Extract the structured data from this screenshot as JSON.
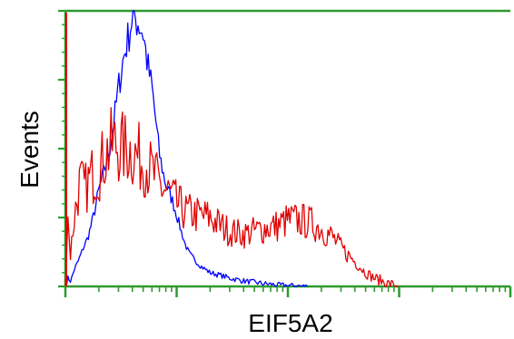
{
  "chart_data": {
    "type": "line",
    "title": "",
    "xlabel": "EIF5A2",
    "ylabel": "Events",
    "xscale": "log",
    "xlim": [
      1,
      10000
    ],
    "ylim": [
      0,
      100
    ],
    "grid": false,
    "legend": "none",
    "axis_color": "#2e9a2e",
    "series": [
      {
        "color": "#0000ff",
        "x": [
          1,
          1.05,
          1.12,
          1.2,
          1.3,
          1.45,
          1.6,
          1.8,
          2.0,
          2.2,
          2.5,
          2.8,
          3.0,
          3.3,
          3.7,
          4.0,
          4.5,
          5.0,
          5.5,
          6.0,
          6.5,
          7.0,
          7.5,
          8.0,
          9.0,
          10,
          11,
          12,
          13,
          15,
          17,
          20,
          25,
          30,
          40,
          50,
          60,
          70,
          80,
          100,
          120,
          150
        ],
        "y": [
          0,
          3,
          2,
          6,
          9,
          14,
          18,
          26,
          35,
          41,
          50,
          63,
          72,
          82,
          91,
          98,
          96,
          92,
          80,
          72,
          60,
          48,
          42,
          37,
          32,
          26,
          20,
          15,
          12,
          9,
          7,
          5,
          4,
          3,
          2,
          1.5,
          1,
          0.8,
          0.5,
          0.3,
          0.2,
          0
        ]
      },
      {
        "color": "#e00000",
        "x": [
          1,
          1.05,
          1.1,
          1.2,
          1.35,
          1.5,
          1.7,
          2.0,
          2.3,
          2.7,
          3.2,
          3.7,
          4.2,
          4.8,
          5.5,
          6.3,
          7.2,
          8.5,
          10,
          12,
          15,
          20,
          25,
          30,
          40,
          50,
          60,
          80,
          100,
          130,
          160,
          200,
          250,
          300,
          400,
          500,
          600,
          700,
          800,
          1000
        ],
        "y": [
          0,
          30,
          10,
          25,
          38,
          35,
          40,
          42,
          48,
          52,
          50,
          50,
          48,
          46,
          44,
          40,
          36,
          34,
          30,
          27,
          26,
          25,
          22,
          20,
          19,
          20,
          21,
          22,
          24,
          24,
          23,
          21,
          18,
          14,
          9,
          5,
          3,
          2,
          1,
          0
        ]
      }
    ]
  }
}
